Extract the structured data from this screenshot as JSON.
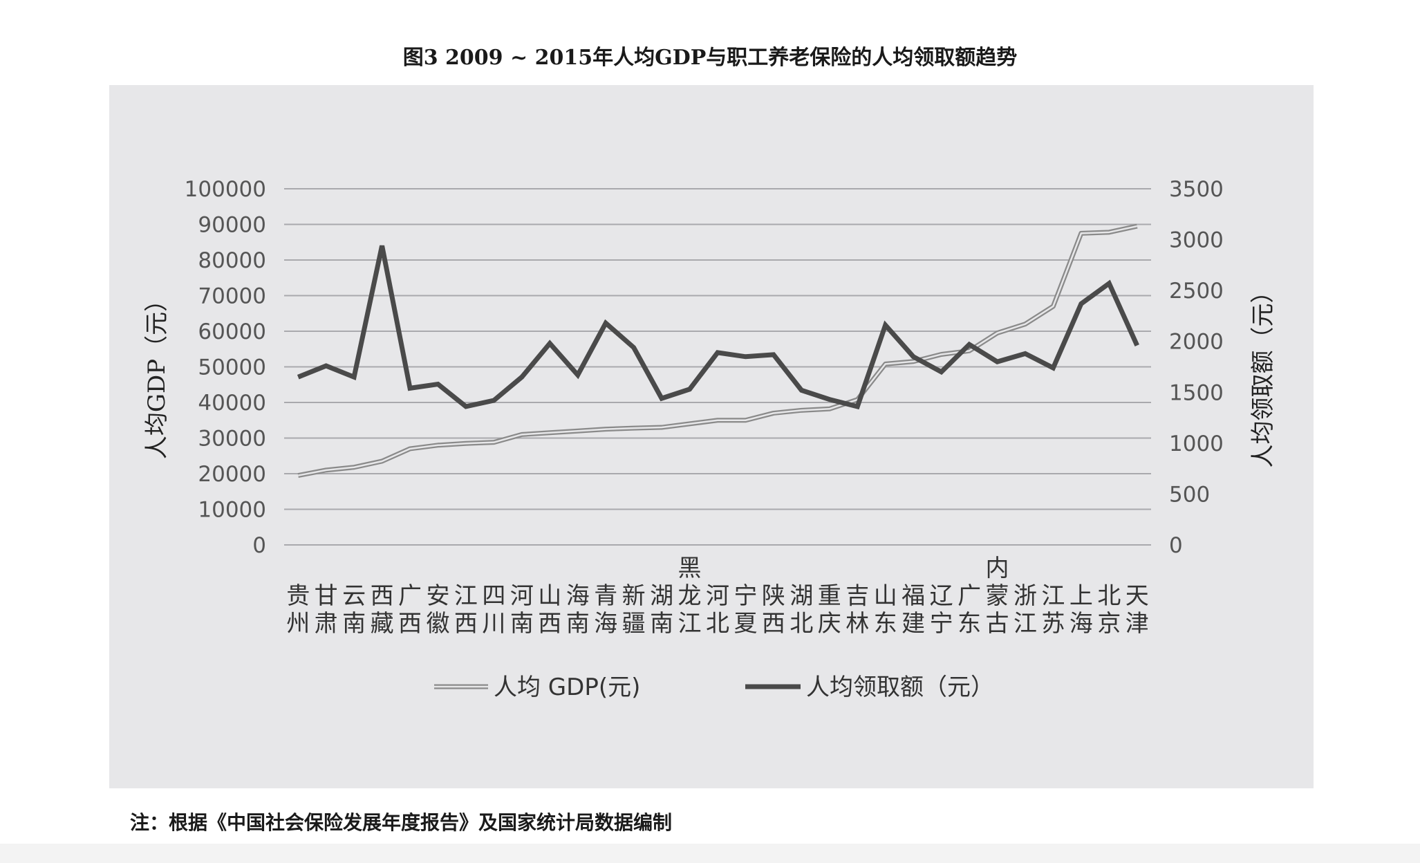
{
  "figure": {
    "title": "图3  2009 ~ 2015年人均GDP与职工养老保险的人均领取额趋势",
    "note": "注：根据《中国社会保险发展年度报告》及国家统计局数据编制"
  },
  "chart_data": {
    "type": "line",
    "categories": [
      [
        "贵",
        "州"
      ],
      [
        "甘",
        "肃"
      ],
      [
        "云",
        "南"
      ],
      [
        "西",
        "藏"
      ],
      [
        "广",
        "西"
      ],
      [
        "安",
        "徽"
      ],
      [
        "江",
        "西"
      ],
      [
        "四",
        "川"
      ],
      [
        "河",
        "南"
      ],
      [
        "山",
        "西"
      ],
      [
        "海",
        "南"
      ],
      [
        "青",
        "海"
      ],
      [
        "新",
        "疆"
      ],
      [
        "湖",
        "南"
      ],
      [
        "黑",
        "龙",
        "江"
      ],
      [
        "河",
        "北"
      ],
      [
        "宁",
        "夏"
      ],
      [
        "陕",
        "西"
      ],
      [
        "湖",
        "北"
      ],
      [
        "重",
        "庆"
      ],
      [
        "吉",
        "林"
      ],
      [
        "山",
        "东"
      ],
      [
        "福",
        "建"
      ],
      [
        "辽",
        "宁"
      ],
      [
        "广",
        "东"
      ],
      [
        "内",
        "蒙",
        "古"
      ],
      [
        "浙",
        "江"
      ],
      [
        "江",
        "苏"
      ],
      [
        "上",
        "海"
      ],
      [
        "北",
        "京"
      ],
      [
        "天",
        "津"
      ]
    ],
    "series": [
      {
        "name": "人均 GDP(元)",
        "axis": "left",
        "style": "double-line",
        "color": "#8a8a8a",
        "values": [
          19500,
          21000,
          21800,
          23500,
          27000,
          28000,
          28500,
          28800,
          31000,
          31500,
          32000,
          32500,
          32800,
          33000,
          34000,
          35000,
          35000,
          37000,
          37800,
          38200,
          40800,
          50800,
          51500,
          53500,
          54500,
          59500,
          62000,
          67000,
          87500,
          87800,
          89500
        ]
      },
      {
        "name": "人均领取额（元）",
        "axis": "right",
        "style": "thick-line",
        "color": "#4a4a4a",
        "values": [
          1650,
          1760,
          1650,
          2940,
          1540,
          1580,
          1360,
          1420,
          1650,
          1980,
          1670,
          2180,
          1940,
          1440,
          1530,
          1890,
          1850,
          1870,
          1520,
          1430,
          1360,
          2160,
          1850,
          1700,
          1970,
          1800,
          1880,
          1740,
          2370,
          2570,
          1960
        ]
      }
    ],
    "y_left": {
      "label": "人均GDP（元）",
      "range": [
        0,
        100000
      ],
      "ticks": [
        "0",
        "10000",
        "20000",
        "30000",
        "40000",
        "50000",
        "60000",
        "70000",
        "80000",
        "90000",
        "100000"
      ]
    },
    "y_right": {
      "label": "人均领取额（元）",
      "range": [
        0,
        3500
      ],
      "ticks": [
        "0",
        "500",
        "1000",
        "1500",
        "2000",
        "2500",
        "3000",
        "3500"
      ]
    },
    "grid": true,
    "legend_position": "bottom"
  },
  "colors": {
    "panel_background": "#e7e7e9",
    "gridline": "#a9a9ad"
  }
}
